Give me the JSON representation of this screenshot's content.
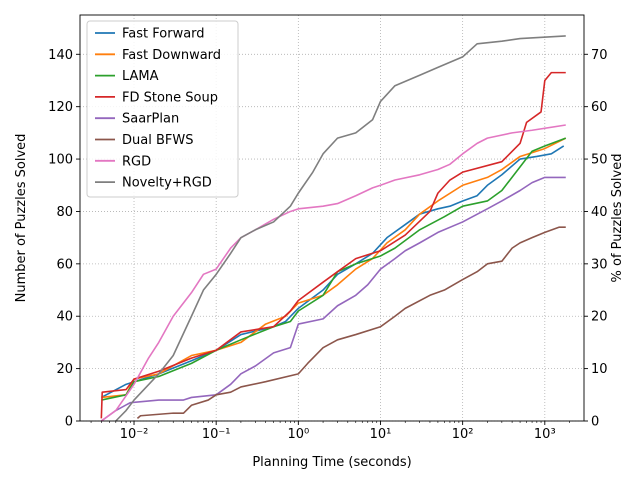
{
  "chart_data": {
    "type": "line",
    "xlabel": "Planning Time (seconds)",
    "ylabel": "Number of Puzzles Solved",
    "y2label": "% of Puzzles Solved",
    "xscale": "log",
    "xlim": [
      0.0022,
      3000
    ],
    "ylim": [
      0,
      155
    ],
    "y2lim": [
      0,
      77.5
    ],
    "grid": true,
    "legend_position": "top-left",
    "xticks": [
      0.01,
      0.1,
      1,
      10,
      100,
      1000
    ],
    "xtick_labels": [
      "10⁻²",
      "10⁻¹",
      "10⁰",
      "10¹",
      "10²",
      "10³"
    ],
    "yticks": [
      0,
      20,
      40,
      60,
      80,
      100,
      120,
      140
    ],
    "y2ticks": [
      0,
      10,
      20,
      30,
      40,
      50,
      60,
      70
    ],
    "series": [
      {
        "name": "Fast Forward",
        "color": "#1f77b4",
        "points": [
          [
            0.004,
            9
          ],
          [
            0.008,
            14
          ],
          [
            0.02,
            18
          ],
          [
            0.05,
            23
          ],
          [
            0.1,
            27
          ],
          [
            0.2,
            33
          ],
          [
            0.5,
            36
          ],
          [
            0.7,
            38
          ],
          [
            1,
            43
          ],
          [
            2,
            50
          ],
          [
            3,
            56
          ],
          [
            5,
            60
          ],
          [
            8,
            64
          ],
          [
            12,
            70
          ],
          [
            20,
            75
          ],
          [
            30,
            79
          ],
          [
            50,
            81
          ],
          [
            70,
            82
          ],
          [
            100,
            84
          ],
          [
            150,
            86
          ],
          [
            200,
            90
          ],
          [
            300,
            94
          ],
          [
            500,
            100
          ],
          [
            800,
            101
          ],
          [
            1200,
            102
          ],
          [
            1700,
            105
          ]
        ]
      },
      {
        "name": "Fast Downward",
        "color": "#ff7f0e",
        "points": [
          [
            0.004,
            9
          ],
          [
            0.008,
            10
          ],
          [
            0.01,
            16
          ],
          [
            0.02,
            18
          ],
          [
            0.05,
            25
          ],
          [
            0.1,
            27
          ],
          [
            0.2,
            30
          ],
          [
            0.4,
            37
          ],
          [
            0.7,
            40
          ],
          [
            1,
            45
          ],
          [
            2,
            48
          ],
          [
            3,
            52
          ],
          [
            5,
            58
          ],
          [
            8,
            62
          ],
          [
            12,
            68
          ],
          [
            20,
            73
          ],
          [
            30,
            79
          ],
          [
            50,
            84
          ],
          [
            100,
            90
          ],
          [
            200,
            93
          ],
          [
            300,
            96
          ],
          [
            500,
            101
          ],
          [
            1000,
            104
          ],
          [
            1800,
            108
          ]
        ]
      },
      {
        "name": "LAMA",
        "color": "#2ca02c",
        "points": [
          [
            0.004,
            8
          ],
          [
            0.008,
            10
          ],
          [
            0.01,
            15
          ],
          [
            0.02,
            17
          ],
          [
            0.05,
            22
          ],
          [
            0.1,
            27
          ],
          [
            0.2,
            31
          ],
          [
            0.5,
            36
          ],
          [
            0.8,
            38
          ],
          [
            1,
            42
          ],
          [
            2,
            48
          ],
          [
            3,
            57
          ],
          [
            5,
            60
          ],
          [
            10,
            63
          ],
          [
            15,
            66
          ],
          [
            30,
            73
          ],
          [
            60,
            78
          ],
          [
            100,
            82
          ],
          [
            200,
            84
          ],
          [
            300,
            88
          ],
          [
            500,
            97
          ],
          [
            700,
            103
          ],
          [
            1000,
            105
          ],
          [
            1800,
            108
          ]
        ]
      },
      {
        "name": "FD Stone Soup",
        "color": "#d62728",
        "points": [
          [
            0.004,
            1
          ],
          [
            0.0041,
            11
          ],
          [
            0.008,
            12
          ],
          [
            0.01,
            16
          ],
          [
            0.02,
            19
          ],
          [
            0.05,
            24
          ],
          [
            0.1,
            27
          ],
          [
            0.2,
            34
          ],
          [
            0.5,
            36
          ],
          [
            0.8,
            42
          ],
          [
            1,
            46
          ],
          [
            2,
            53
          ],
          [
            3,
            57
          ],
          [
            5,
            62
          ],
          [
            10,
            65
          ],
          [
            20,
            71
          ],
          [
            40,
            80
          ],
          [
            50,
            87
          ],
          [
            70,
            92
          ],
          [
            100,
            95
          ],
          [
            300,
            99
          ],
          [
            500,
            106
          ],
          [
            600,
            114
          ],
          [
            900,
            118
          ],
          [
            1000,
            130
          ],
          [
            1200,
            133
          ],
          [
            1800,
            133
          ]
        ]
      },
      {
        "name": "SaarPlan",
        "color": "#9467bd",
        "points": [
          [
            0.004,
            0
          ],
          [
            0.006,
            4
          ],
          [
            0.009,
            7
          ],
          [
            0.02,
            8
          ],
          [
            0.04,
            8
          ],
          [
            0.05,
            9
          ],
          [
            0.1,
            10
          ],
          [
            0.15,
            14
          ],
          [
            0.2,
            18
          ],
          [
            0.3,
            21
          ],
          [
            0.5,
            26
          ],
          [
            0.8,
            28
          ],
          [
            1,
            37
          ],
          [
            2,
            39
          ],
          [
            3,
            44
          ],
          [
            5,
            48
          ],
          [
            7,
            52
          ],
          [
            10,
            58
          ],
          [
            15,
            62
          ],
          [
            20,
            65
          ],
          [
            30,
            68
          ],
          [
            50,
            72
          ],
          [
            100,
            76
          ],
          [
            200,
            81
          ],
          [
            300,
            84
          ],
          [
            500,
            88
          ],
          [
            700,
            91
          ],
          [
            1000,
            93
          ],
          [
            1800,
            93
          ]
        ]
      },
      {
        "name": "Dual BFWS",
        "color": "#8c564b",
        "points": [
          [
            0.011,
            1
          ],
          [
            0.012,
            2
          ],
          [
            0.03,
            3
          ],
          [
            0.04,
            3
          ],
          [
            0.05,
            6
          ],
          [
            0.08,
            8
          ],
          [
            0.1,
            10
          ],
          [
            0.15,
            11
          ],
          [
            0.2,
            13
          ],
          [
            0.4,
            15
          ],
          [
            1,
            18
          ],
          [
            1.3,
            22
          ],
          [
            2,
            28
          ],
          [
            3,
            31
          ],
          [
            5,
            33
          ],
          [
            10,
            36
          ],
          [
            15,
            40
          ],
          [
            20,
            43
          ],
          [
            40,
            48
          ],
          [
            60,
            50
          ],
          [
            100,
            54
          ],
          [
            150,
            57
          ],
          [
            200,
            60
          ],
          [
            300,
            61
          ],
          [
            400,
            66
          ],
          [
            500,
            68
          ],
          [
            700,
            70
          ],
          [
            1000,
            72
          ],
          [
            1500,
            74
          ],
          [
            1800,
            74
          ]
        ]
      },
      {
        "name": "RGD",
        "color": "#e377c2",
        "points": [
          [
            0.004,
            0
          ],
          [
            0.006,
            4
          ],
          [
            0.01,
            14
          ],
          [
            0.015,
            24
          ],
          [
            0.02,
            30
          ],
          [
            0.03,
            40
          ],
          [
            0.05,
            49
          ],
          [
            0.07,
            56
          ],
          [
            0.1,
            58
          ],
          [
            0.15,
            66
          ],
          [
            0.2,
            70
          ],
          [
            0.3,
            73
          ],
          [
            0.5,
            77
          ],
          [
            0.8,
            80
          ],
          [
            1,
            81
          ],
          [
            2,
            82
          ],
          [
            3,
            83
          ],
          [
            5,
            86
          ],
          [
            8,
            89
          ],
          [
            10,
            90
          ],
          [
            15,
            92
          ],
          [
            30,
            94
          ],
          [
            50,
            96
          ],
          [
            70,
            98
          ],
          [
            100,
            102
          ],
          [
            150,
            106
          ],
          [
            200,
            108
          ],
          [
            400,
            110
          ],
          [
            700,
            111
          ],
          [
            1800,
            113
          ]
        ]
      },
      {
        "name": "Novelty+RGD",
        "color": "#7f7f7f",
        "points": [
          [
            0.006,
            0
          ],
          [
            0.008,
            4
          ],
          [
            0.01,
            8
          ],
          [
            0.02,
            18
          ],
          [
            0.03,
            25
          ],
          [
            0.05,
            40
          ],
          [
            0.07,
            50
          ],
          [
            0.1,
            56
          ],
          [
            0.15,
            64
          ],
          [
            0.2,
            70
          ],
          [
            0.3,
            73
          ],
          [
            0.5,
            76
          ],
          [
            0.8,
            82
          ],
          [
            1,
            87
          ],
          [
            1.5,
            95
          ],
          [
            2,
            102
          ],
          [
            3,
            108
          ],
          [
            5,
            110
          ],
          [
            8,
            115
          ],
          [
            10,
            122
          ],
          [
            15,
            128
          ],
          [
            30,
            132
          ],
          [
            50,
            135
          ],
          [
            100,
            139
          ],
          [
            150,
            144
          ],
          [
            300,
            145
          ],
          [
            500,
            146
          ],
          [
            1800,
            147
          ]
        ]
      }
    ]
  }
}
